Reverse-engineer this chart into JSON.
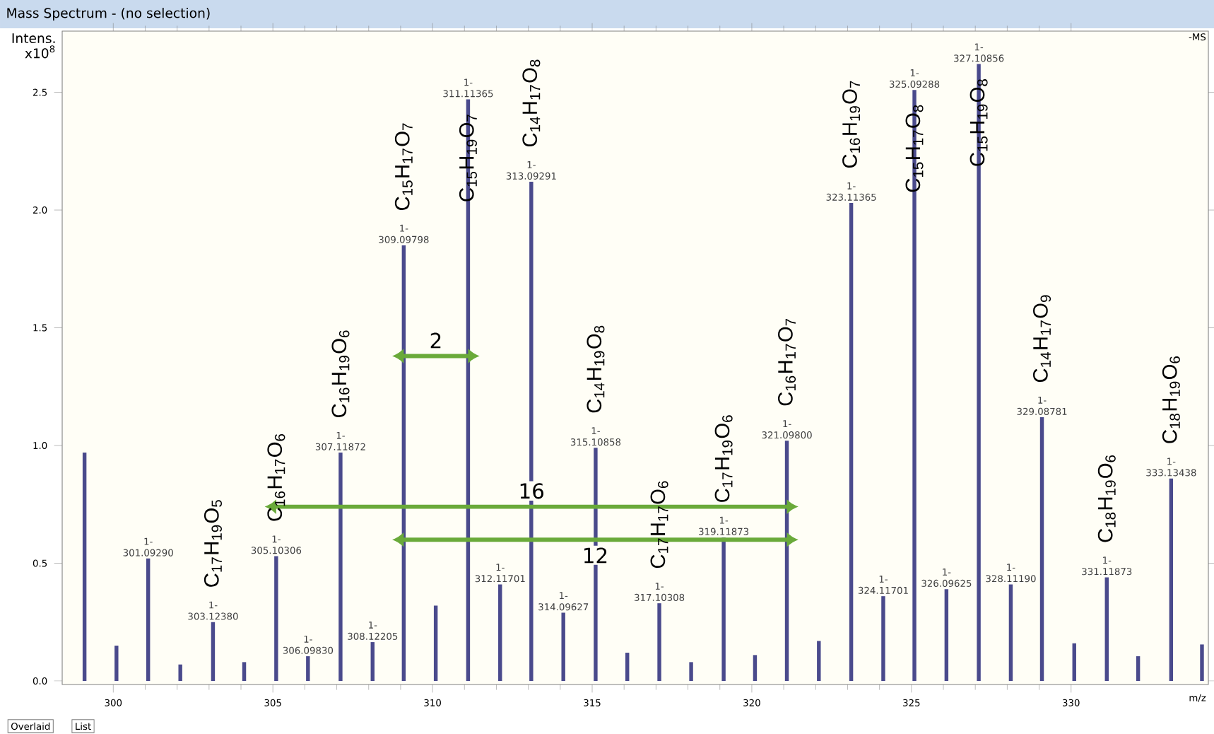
{
  "chart_data": {
    "type": "bar",
    "title": "Mass Spectrum - (no selection)",
    "xlabel": "m/z",
    "ylabel": "Intens. x10$^{8}$",
    "xlim": [
      298.4,
      334.3
    ],
    "xticks": [
      300,
      305,
      310,
      315,
      320,
      325,
      330
    ],
    "ylim": [
      -0.015,
      2.76
    ],
    "yticks": [
      {
        "value": 0,
        "label": "0.0"
      },
      {
        "value": 0.5,
        "label": "0.5"
      },
      {
        "value": 1,
        "label": "1.0"
      },
      {
        "value": 1.5,
        "label": "1.5"
      },
      {
        "value": 2,
        "label": "2.0"
      },
      {
        "value": 2.5,
        "label": "2.5"
      }
    ],
    "series": [
      {
        "color": "#4a4a8c",
        "x": [
          299.1,
          300.1,
          301.0929,
          302.1,
          303.1238,
          304.1,
          305.10306,
          306.0983,
          307.11872,
          308.12205,
          309.09798,
          310.1,
          311.11365,
          312.11701,
          313.09291,
          314.09627,
          315.10858,
          316.1,
          317.10308,
          318.1,
          319.11873,
          320.1,
          321.098,
          322.1,
          323.11365,
          324.11701,
          325.09288,
          326.09625,
          327.10856,
          328.1119,
          329.08781,
          330.1,
          331.11873,
          332.1,
          333.13438,
          334.1
        ],
        "values": [
          0.97,
          0.15,
          0.52,
          0.07,
          0.25,
          0.08,
          0.53,
          0.105,
          0.97,
          0.165,
          1.85,
          0.32,
          2.47,
          0.41,
          2.12,
          0.29,
          0.99,
          0.12,
          0.33,
          0.08,
          0.61,
          0.11,
          1.02,
          0.17,
          2.03,
          0.36,
          2.51,
          0.39,
          2.62,
          0.41,
          1.12,
          0.16,
          0.44,
          0.105,
          0.86,
          0.155
        ],
        "value_labels": [
          null,
          null,
          "1- 301.09290",
          null,
          "1- 303.12380",
          null,
          "1- 305.10306",
          "1- 306.09830",
          "1- 307.11872",
          "1- 308.12205",
          "1- 309.09798",
          null,
          "1- 311.11365",
          "1- 312.11701",
          "1- 313.09291",
          "1- 314.09627",
          "1- 315.10858",
          null,
          "1- 317.10308",
          null,
          "1- 319.11873",
          null,
          "1- 321.09800",
          null,
          "1- 323.11365",
          "1- 324.11701",
          "1- 325.09288",
          "1- 326.09625",
          "1- 327.10856",
          "1- 328.11190",
          "1- 329.08781",
          null,
          "1- 331.11873",
          null,
          "1- 333.13438",
          null
        ]
      },
      {
        "type": "line",
        "name": "2",
        "color": "#6aaa3a",
        "marker": "triangle",
        "x": [
          309.09798,
          311.11365
        ],
        "values": [
          1.38,
          1.38
        ]
      },
      {
        "type": "line",
        "name": "16",
        "color": "#6aaa3a",
        "marker": "triangle",
        "x": [
          305.10306,
          321.098
        ],
        "values": [
          0.74,
          0.74
        ]
      },
      {
        "type": "line",
        "name": "12",
        "color": "#6aaa3a",
        "marker": "triangle",
        "x": [
          309.09798,
          321.098
        ],
        "values": [
          0.6,
          0.6
        ]
      }
    ],
    "annotations": [
      {
        "text": "C$_{17}$H$_{19}$O$_{5}$",
        "x": 303.1238,
        "y": 0.25
      },
      {
        "text": "C$_{16}$H$_{17}$O$_{6}$",
        "x": 305.10306,
        "y": 0.53
      },
      {
        "text": "C$_{16}$H$_{19}$O$_{6}$",
        "x": 307.11872,
        "y": 0.97
      },
      {
        "text": "C$_{15}$H$_{17}$O$_{7}$",
        "x": 309.09798,
        "y": 1.85
      },
      {
        "text": "C$_{15}$H$_{19}$O$_{7}$",
        "x": 311.11365,
        "y": 2.47
      },
      {
        "text": "C$_{14}$H$_{17}$O$_{8}$",
        "x": 313.09291,
        "y": 2.12
      },
      {
        "text": "C$_{14}$H$_{19}$O$_{8}$",
        "x": 315.10858,
        "y": 0.99
      },
      {
        "text": "C$_{17}$H$_{17}$O$_{6}$",
        "x": 317.10308,
        "y": 0.33
      },
      {
        "text": "C$_{17}$H$_{19}$O$_{6}$",
        "x": 319.11873,
        "y": 0.61
      },
      {
        "text": "C$_{16}$H$_{17}$O$_{7}$",
        "x": 321.098,
        "y": 1.02
      },
      {
        "text": "C$_{16}$H$_{19}$O$_{7}$",
        "x": 323.11365,
        "y": 2.03
      },
      {
        "text": "C$_{15}$H$_{17}$O$_{8}$",
        "x": 325.09288,
        "y": 2.51
      },
      {
        "text": "C$_{15}$H$_{19}$O$_{8}$",
        "x": 327.10856,
        "y": 2.62
      },
      {
        "text": "C$_{14}$H$_{17}$O$_{9}$",
        "x": 329.08781,
        "y": 1.12
      },
      {
        "text": "C$_{18}$H$_{19}$O$_{6}$",
        "x": 331.11873,
        "y": 0.44
      },
      {
        "text": "C$_{18}$H$_{19}$O$_{6}$",
        "x": 333.13438,
        "y": 0.86
      },
      "-MS",
      "Overlaid",
      "List"
    ]
  }
}
